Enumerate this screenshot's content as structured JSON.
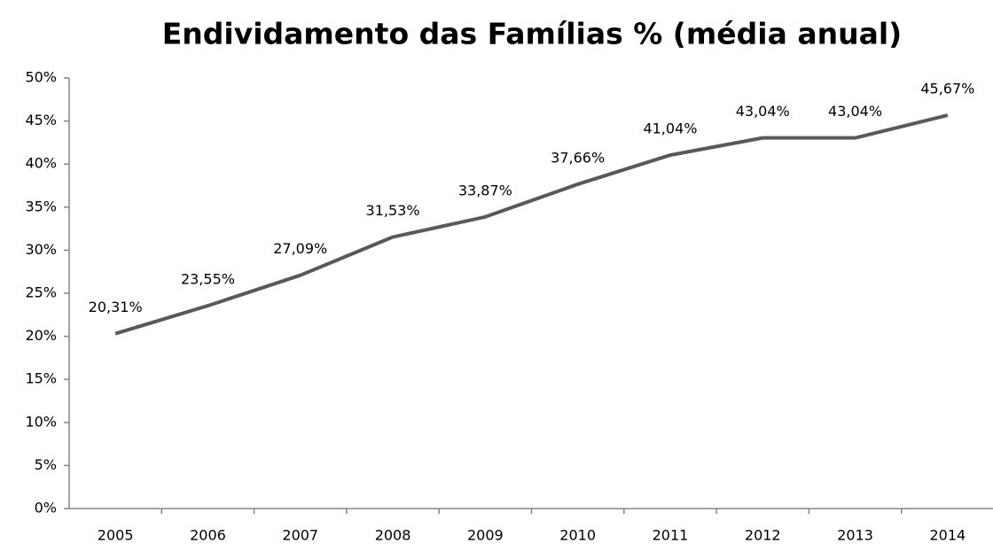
{
  "chart_data": {
    "type": "line",
    "title": "Endividamento das Famílias % (média anual)",
    "categories": [
      "2005",
      "2006",
      "2007",
      "2008",
      "2009",
      "2010",
      "2011",
      "2012",
      "2013",
      "2014"
    ],
    "values": [
      20.31,
      23.55,
      27.09,
      31.53,
      33.87,
      37.66,
      41.04,
      43.04,
      43.04,
      45.67
    ],
    "value_labels": [
      "20,31%",
      "23,55%",
      "27,09%",
      "31,53%",
      "33,87%",
      "37,66%",
      "41,04%",
      "43,04%",
      "43,04%",
      "45,67%"
    ],
    "color": "#595959",
    "ylim": [
      0,
      50
    ],
    "yticks": [
      {
        "value": 0,
        "label": "0%"
      },
      {
        "value": 5,
        "label": "5%"
      },
      {
        "value": 10,
        "label": "10%"
      },
      {
        "value": 15,
        "label": "15%"
      },
      {
        "value": 20,
        "label": "20%"
      },
      {
        "value": 25,
        "label": "25%"
      },
      {
        "value": 30,
        "label": "30%"
      },
      {
        "value": 35,
        "label": "35%"
      },
      {
        "value": 40,
        "label": "40%"
      },
      {
        "value": 45,
        "label": "45%"
      },
      {
        "value": 50,
        "label": "50%"
      }
    ],
    "grid": false
  }
}
